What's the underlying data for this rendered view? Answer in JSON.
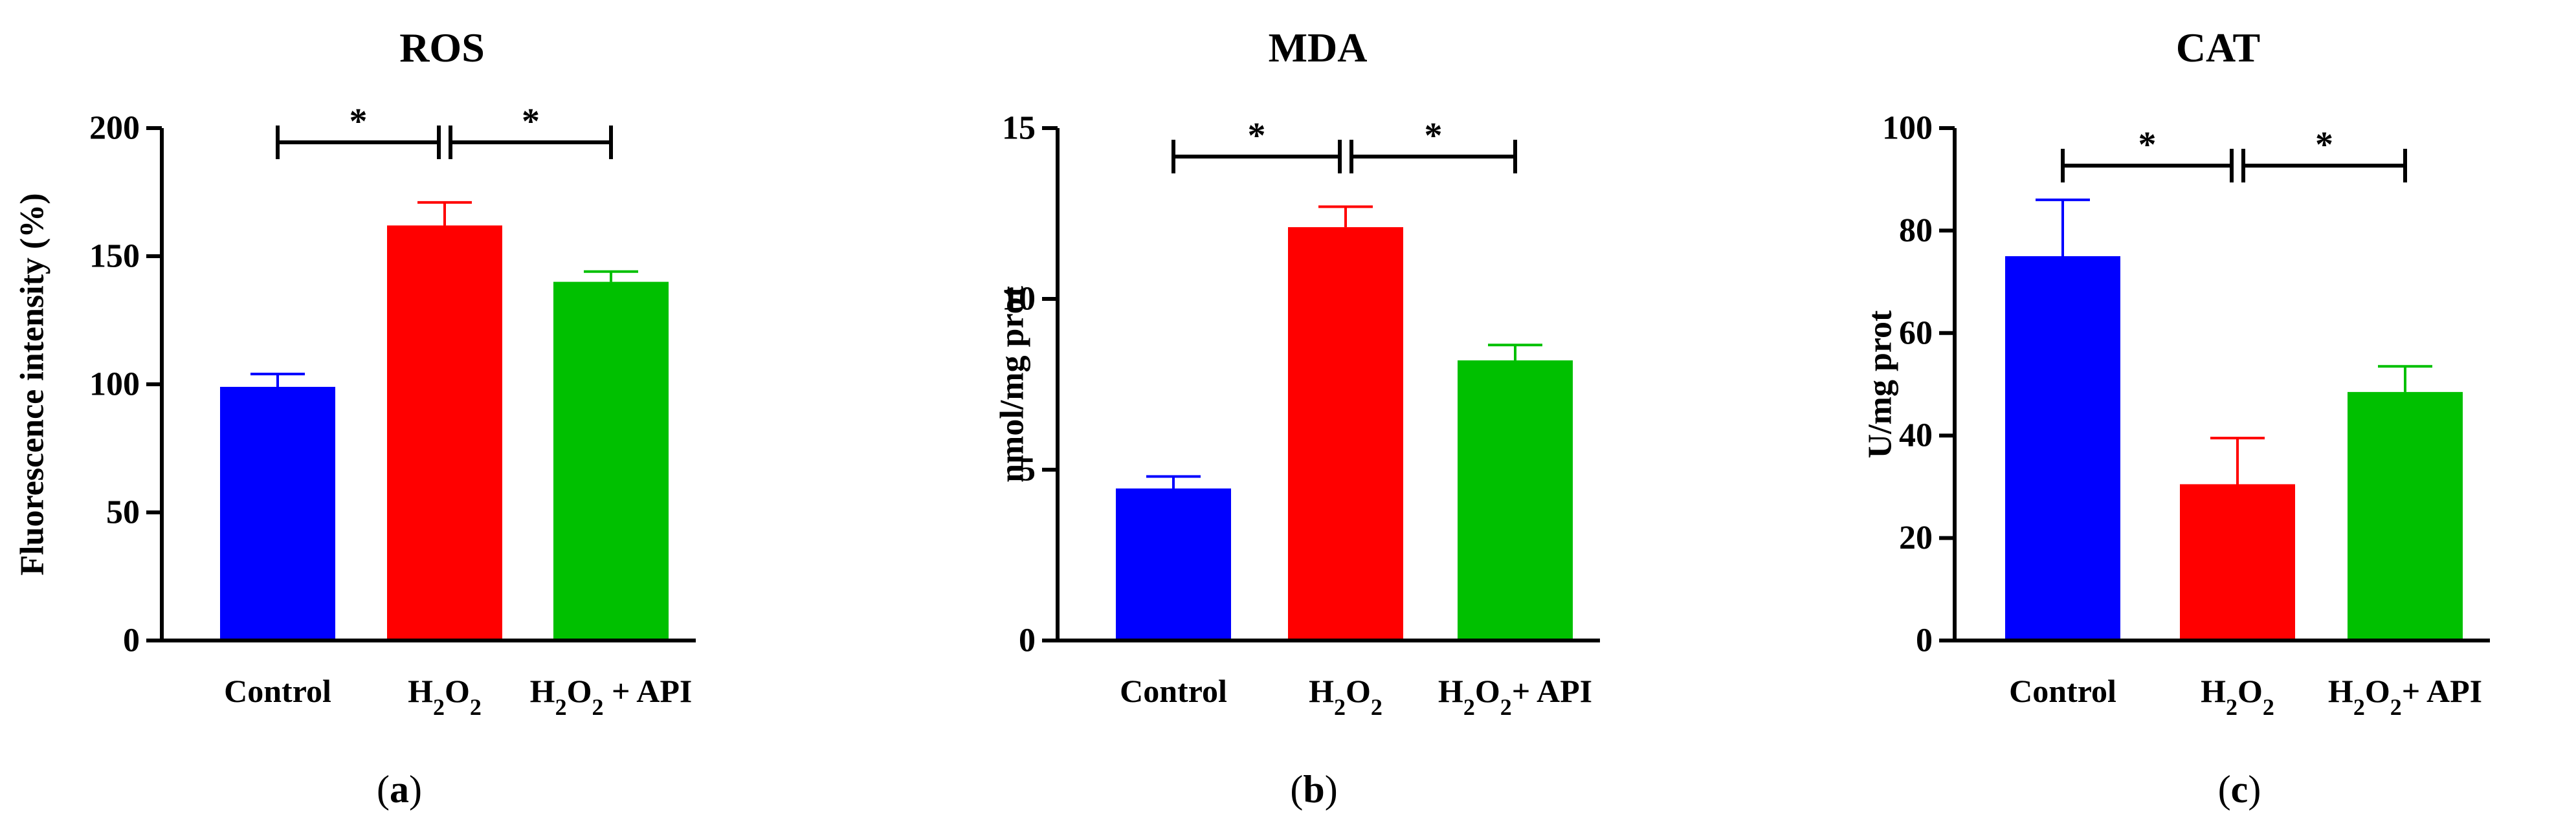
{
  "chart_data": [
    {
      "type": "bar",
      "title": "ROS",
      "ylabel": "Fluorescence intensity (%)",
      "ylim": [
        0,
        200
      ],
      "yticks": [
        0,
        50,
        100,
        150,
        200
      ],
      "categories": [
        {
          "base": "Control",
          "rich": [
            {
              "t": "Control"
            }
          ]
        },
        {
          "base": "H2O2",
          "rich": [
            {
              "t": "H"
            },
            {
              "t": "2",
              "sub": true
            },
            {
              "t": "O"
            },
            {
              "t": "2",
              "sub": true
            }
          ]
        },
        {
          "base": "H2O2 + API",
          "rich": [
            {
              "t": "H"
            },
            {
              "t": "2",
              "sub": true
            },
            {
              "t": "O"
            },
            {
              "t": "2",
              "sub": true
            },
            {
              "t": " + API"
            }
          ]
        }
      ],
      "values": [
        99,
        162,
        140
      ],
      "errors": [
        5,
        9,
        4
      ],
      "colors": [
        "#0000ff",
        "#ff0000",
        "#00c000"
      ],
      "error_colors": [
        "#0000ff",
        "#ff0000",
        "#00c000"
      ],
      "significance": [
        {
          "from": 0,
          "to": 1,
          "label": "*"
        },
        {
          "from": 1,
          "to": 2,
          "label": "*"
        }
      ],
      "panel_label": {
        "open": "(",
        "letter": "a",
        "close": ")"
      }
    },
    {
      "type": "bar",
      "title": "MDA",
      "ylabel": "nmol/mg prot",
      "ylim": [
        0,
        15
      ],
      "yticks": [
        0,
        5,
        10,
        15
      ],
      "categories": [
        {
          "base": "Control",
          "rich": [
            {
              "t": "Control"
            }
          ]
        },
        {
          "base": "H2O2",
          "rich": [
            {
              "t": "H"
            },
            {
              "t": "2",
              "sub": true
            },
            {
              "t": "O"
            },
            {
              "t": "2",
              "sub": true
            }
          ]
        },
        {
          "base": "H2O2+ API",
          "rich": [
            {
              "t": "H"
            },
            {
              "t": "2",
              "sub": true
            },
            {
              "t": "O"
            },
            {
              "t": "2",
              "sub": true
            },
            {
              "t": "+ API"
            }
          ]
        }
      ],
      "values": [
        4.45,
        12.1,
        8.2
      ],
      "errors": [
        0.35,
        0.6,
        0.45
      ],
      "colors": [
        "#0000ff",
        "#ff0000",
        "#00c000"
      ],
      "error_colors": [
        "#0000ff",
        "#ff0000",
        "#00c000"
      ],
      "significance": [
        {
          "from": 0,
          "to": 1,
          "label": "*"
        },
        {
          "from": 1,
          "to": 2,
          "label": "*"
        }
      ],
      "panel_label": {
        "open": "(",
        "letter": "b",
        "close": ")"
      }
    },
    {
      "type": "bar",
      "title": "CAT",
      "ylabel": "U/mg prot",
      "ylim": [
        0,
        100
      ],
      "yticks": [
        0,
        20,
        40,
        60,
        80,
        100
      ],
      "categories": [
        {
          "base": "Control",
          "rich": [
            {
              "t": "Control"
            }
          ]
        },
        {
          "base": "H2O2",
          "rich": [
            {
              "t": "H"
            },
            {
              "t": "2",
              "sub": true
            },
            {
              "t": "O"
            },
            {
              "t": "2",
              "sub": true
            }
          ]
        },
        {
          "base": "H2O2+ API",
          "rich": [
            {
              "t": "H"
            },
            {
              "t": "2",
              "sub": true
            },
            {
              "t": "O"
            },
            {
              "t": "2",
              "sub": true
            },
            {
              "t": "+ API"
            }
          ]
        }
      ],
      "values": [
        75,
        30.5,
        48.5
      ],
      "errors": [
        11,
        9,
        5
      ],
      "colors": [
        "#0000ff",
        "#ff0000",
        "#00c000"
      ],
      "error_colors": [
        "#0000ff",
        "#ff0000",
        "#00c000"
      ],
      "significance": [
        {
          "from": 0,
          "to": 1,
          "label": "*"
        },
        {
          "from": 1,
          "to": 2,
          "label": "*"
        }
      ],
      "panel_label": {
        "open": "(",
        "letter": "c",
        "close": ")"
      }
    }
  ]
}
